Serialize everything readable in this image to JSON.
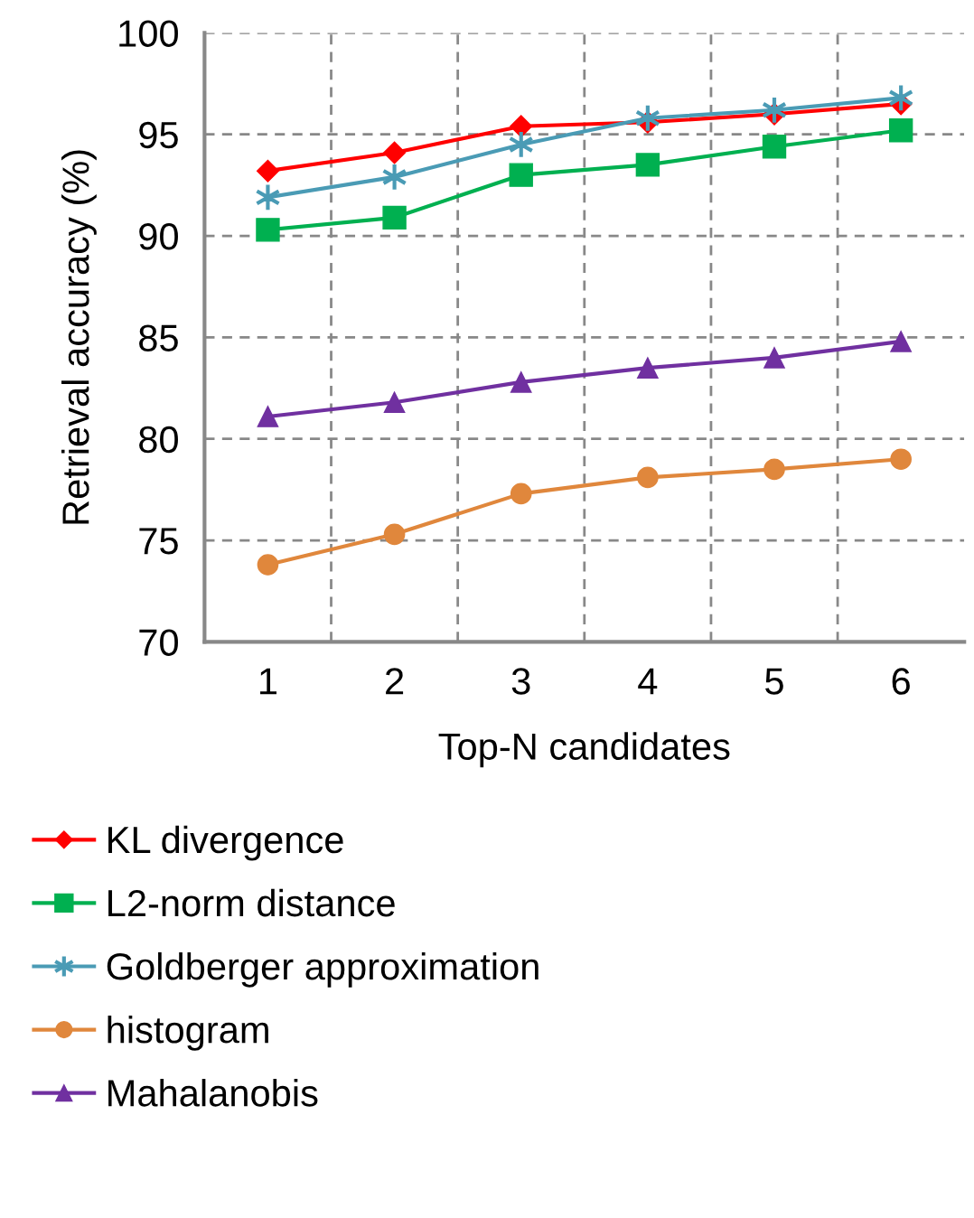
{
  "chart_data": {
    "type": "line",
    "xlabel": "Top-N candidates",
    "ylabel": "Retrieval accuracy (%)",
    "categories": [
      "1",
      "2",
      "3",
      "4",
      "5",
      "6"
    ],
    "series": [
      {
        "name": "KL divergence",
        "color": "#ff0000",
        "marker": "diamond",
        "values": [
          93.2,
          94.1,
          95.4,
          95.6,
          96.0,
          96.5
        ]
      },
      {
        "name": "L2-norm distance",
        "color": "#00b050",
        "marker": "square",
        "values": [
          90.3,
          90.9,
          93.0,
          93.5,
          94.4,
          95.2
        ]
      },
      {
        "name": "Goldberger approximation",
        "color": "#4a9bb5",
        "marker": "cross",
        "values": [
          91.9,
          92.9,
          94.5,
          95.8,
          96.2,
          96.8
        ]
      },
      {
        "name": "histogram",
        "color": "#e0873c",
        "marker": "circle",
        "values": [
          73.8,
          75.3,
          77.3,
          78.1,
          78.5,
          79.0
        ]
      },
      {
        "name": "Mahalanobis",
        "color": "#7030a0",
        "marker": "triangle",
        "values": [
          81.1,
          81.8,
          82.8,
          83.5,
          84.0,
          84.8
        ]
      }
    ],
    "ylim": [
      70,
      100
    ],
    "yticks": [
      70,
      75,
      80,
      85,
      90,
      95,
      100
    ],
    "grid": true,
    "legend": "bottom",
    "line_style": "solid"
  }
}
